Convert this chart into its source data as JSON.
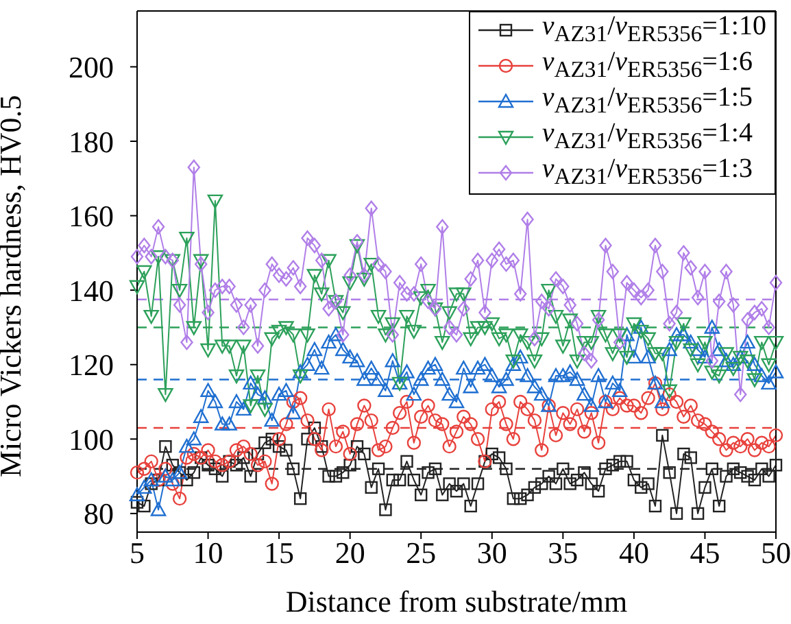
{
  "chart_data": {
    "type": "line",
    "xlabel": "Distance from substrate/mm",
    "ylabel": "Micro Vickers hardness, HV0.5",
    "x": [
      5,
      5.5,
      6,
      6.5,
      7,
      7.5,
      8,
      8.5,
      9,
      9.5,
      10,
      10.5,
      11,
      11.5,
      12,
      12.5,
      13,
      13.5,
      14,
      14.5,
      15,
      15.5,
      16,
      16.5,
      17,
      17.5,
      18,
      18.5,
      19,
      19.5,
      20,
      20.5,
      21,
      21.5,
      22,
      22.5,
      23,
      23.5,
      24,
      24.5,
      25,
      25.5,
      26,
      26.5,
      27,
      27.5,
      28,
      28.5,
      29,
      29.5,
      30,
      30.5,
      31,
      31.5,
      32,
      32.5,
      33,
      33.5,
      34,
      34.5,
      35,
      35.5,
      36,
      36.5,
      37,
      37.5,
      38,
      38.5,
      39,
      39.5,
      40,
      40.5,
      41,
      41.5,
      42,
      42.5,
      43,
      43.5,
      44,
      44.5,
      45,
      45.5,
      46,
      46.5,
      47,
      47.5,
      48,
      48.5,
      49,
      49.5,
      50
    ],
    "xlim": [
      5,
      50
    ],
    "xticks": [
      5,
      10,
      15,
      20,
      25,
      30,
      35,
      40,
      45,
      50
    ],
    "ylim": [
      75,
      215
    ],
    "yticks": [
      80,
      100,
      120,
      140,
      160,
      180,
      200
    ],
    "legend": "top right",
    "line_style": "solid",
    "series": [
      {
        "name": "v$_{AZ31}$/v$_{ER5356}$=1:10",
        "color": "#222222",
        "marker": "square",
        "values": [
          83,
          82,
          88,
          89,
          98,
          93,
          91,
          89,
          91,
          95,
          93,
          92,
          90,
          94,
          93,
          95,
          90,
          96,
          99,
          100,
          98,
          97,
          92,
          84,
          100,
          103,
          98,
          90,
          90,
          91,
          93,
          98,
          96,
          87,
          92,
          81,
          89,
          89,
          94,
          89,
          85,
          91,
          92,
          85,
          88,
          86,
          88,
          82,
          88,
          94,
          96,
          95,
          92,
          84,
          84,
          85,
          87,
          88,
          90,
          88,
          92,
          88,
          89,
          91,
          88,
          86,
          92,
          93,
          94,
          94,
          89,
          87,
          88,
          82,
          101,
          91,
          80,
          96,
          95,
          80,
          87,
          92,
          82,
          90,
          92,
          91,
          90,
          89,
          92,
          90,
          93
        ]
      },
      {
        "name": "v$_{AZ31}$/v$_{ER5356}$=1:6",
        "color": "#e8413c",
        "marker": "circle",
        "values": [
          91,
          92,
          94,
          89,
          92,
          88,
          84,
          95,
          96,
          95,
          97,
          94,
          93,
          94,
          97,
          98,
          96,
          93,
          94,
          88,
          100,
          104,
          110,
          111,
          105,
          100,
          97,
          108,
          98,
          102,
          96,
          104,
          109,
          105,
          97,
          98,
          103,
          107,
          110,
          99,
          106,
          109,
          105,
          104,
          98,
          102,
          106,
          104,
          100,
          94,
          108,
          110,
          104,
          100,
          110,
          108,
          105,
          97,
          109,
          101,
          107,
          104,
          108,
          102,
          107,
          99,
          110,
          108,
          111,
          109,
          109,
          107,
          111,
          115,
          108,
          112,
          110,
          106,
          109,
          105,
          104,
          102,
          100,
          97,
          99,
          98,
          100,
          97,
          99,
          98,
          101
        ]
      },
      {
        "name": "v$_{AZ31}$/v$_{ER5356}$=1:5",
        "color": "#1f6fd1",
        "marker": "triangle",
        "values": [
          85,
          87,
          89,
          81,
          90,
          89,
          91,
          98,
          100,
          106,
          113,
          110,
          104,
          104,
          110,
          108,
          115,
          112,
          111,
          105,
          112,
          113,
          107,
          118,
          120,
          124,
          119,
          126,
          128,
          124,
          122,
          121,
          116,
          119,
          116,
          113,
          121,
          115,
          118,
          112,
          116,
          119,
          120,
          116,
          112,
          110,
          119,
          114,
          119,
          120,
          117,
          114,
          116,
          120,
          122,
          117,
          114,
          112,
          109,
          117,
          117,
          118,
          116,
          112,
          109,
          117,
          110,
          115,
          113,
          128,
          122,
          130,
          122,
          115,
          110,
          124,
          128,
          128,
          126,
          124,
          122,
          130,
          124,
          121,
          120,
          122,
          126,
          120,
          117,
          115,
          118
        ]
      },
      {
        "name": "v$_{AZ31}$/v$_{ER5356}$=1:4",
        "color": "#2ca05a",
        "marker": "triangle-down",
        "values": [
          141,
          145,
          133,
          149,
          112,
          148,
          140,
          154,
          130,
          148,
          124,
          164,
          125,
          125,
          117,
          125,
          109,
          117,
          108,
          127,
          129,
          130,
          128,
          117,
          128,
          144,
          139,
          148,
          137,
          134,
          142,
          152,
          143,
          147,
          133,
          128,
          131,
          115,
          133,
          129,
          138,
          140,
          135,
          126,
          134,
          139,
          139,
          127,
          130,
          130,
          131,
          127,
          128,
          121,
          128,
          126,
          121,
          127,
          140,
          133,
          125,
          132,
          121,
          126,
          126,
          133,
          128,
          123,
          128,
          122,
          131,
          129,
          127,
          123,
          123,
          113,
          126,
          131,
          124,
          120,
          126,
          118,
          117,
          123,
          119,
          122,
          121,
          116,
          126,
          120,
          126
        ]
      },
      {
        "name": "v$_{AZ31}$/v$_{ER5356}$=1:3",
        "color": "#b07ee8",
        "marker": "diamond",
        "values": [
          149,
          152,
          149,
          157,
          149,
          148,
          136,
          126,
          173,
          147,
          134,
          140,
          141,
          141,
          136,
          130,
          136,
          125,
          140,
          147,
          144,
          143,
          146,
          141,
          154,
          152,
          148,
          135,
          137,
          128,
          144,
          153,
          144,
          162,
          147,
          145,
          128,
          142,
          139,
          139,
          147,
          137,
          135,
          157,
          130,
          128,
          135,
          143,
          148,
          134,
          148,
          151,
          147,
          148,
          139,
          159,
          127,
          137,
          135,
          143,
          141,
          136,
          131,
          123,
          121,
          132,
          152,
          145,
          126,
          142,
          140,
          138,
          140,
          152,
          145,
          131,
          134,
          150,
          146,
          138,
          145,
          121,
          137,
          145,
          136,
          112,
          132,
          134,
          135,
          130,
          142
        ]
      }
    ],
    "ref_lines": [
      {
        "axis": "y",
        "value": 92,
        "color": "#222222",
        "line_style": "dashed"
      },
      {
        "axis": "y",
        "value": 103,
        "color": "#e8413c",
        "line_style": "dashed"
      },
      {
        "axis": "y",
        "value": 116,
        "color": "#1f6fd1",
        "line_style": "dashed"
      },
      {
        "axis": "y",
        "value": 130,
        "color": "#2ca05a",
        "line_style": "dashed"
      },
      {
        "axis": "y",
        "value": 137.5,
        "color": "#b07ee8",
        "line_style": "dashed"
      }
    ]
  }
}
